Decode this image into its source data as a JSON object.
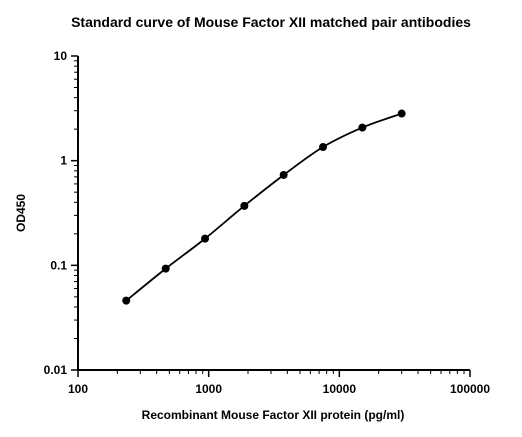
{
  "chart_data": {
    "type": "scatter",
    "title": "Standard curve of Mouse Factor XII matched pair antibodies",
    "xlabel": "Recombinant Mouse Factor XII protein (pg/ml)",
    "ylabel": "OD450",
    "x_scale": "log",
    "y_scale": "log",
    "xlim": [
      100,
      100000
    ],
    "ylim": [
      0.01,
      10
    ],
    "x_ticks": [
      100,
      1000,
      10000,
      100000
    ],
    "x_tick_labels": [
      "100",
      "1000",
      "10000",
      "100000"
    ],
    "y_ticks": [
      0.01,
      0.1,
      1,
      10
    ],
    "y_tick_labels": [
      "0.01",
      "0.1",
      "1",
      "10"
    ],
    "grid": false,
    "series": [
      {
        "x": [
          234,
          469,
          938,
          1875,
          3750,
          7500,
          15000,
          30000
        ],
        "y": [
          0.046,
          0.093,
          0.18,
          0.37,
          0.73,
          1.35,
          2.07,
          2.82
        ],
        "color": "#000000",
        "fit_curve": true
      }
    ]
  }
}
